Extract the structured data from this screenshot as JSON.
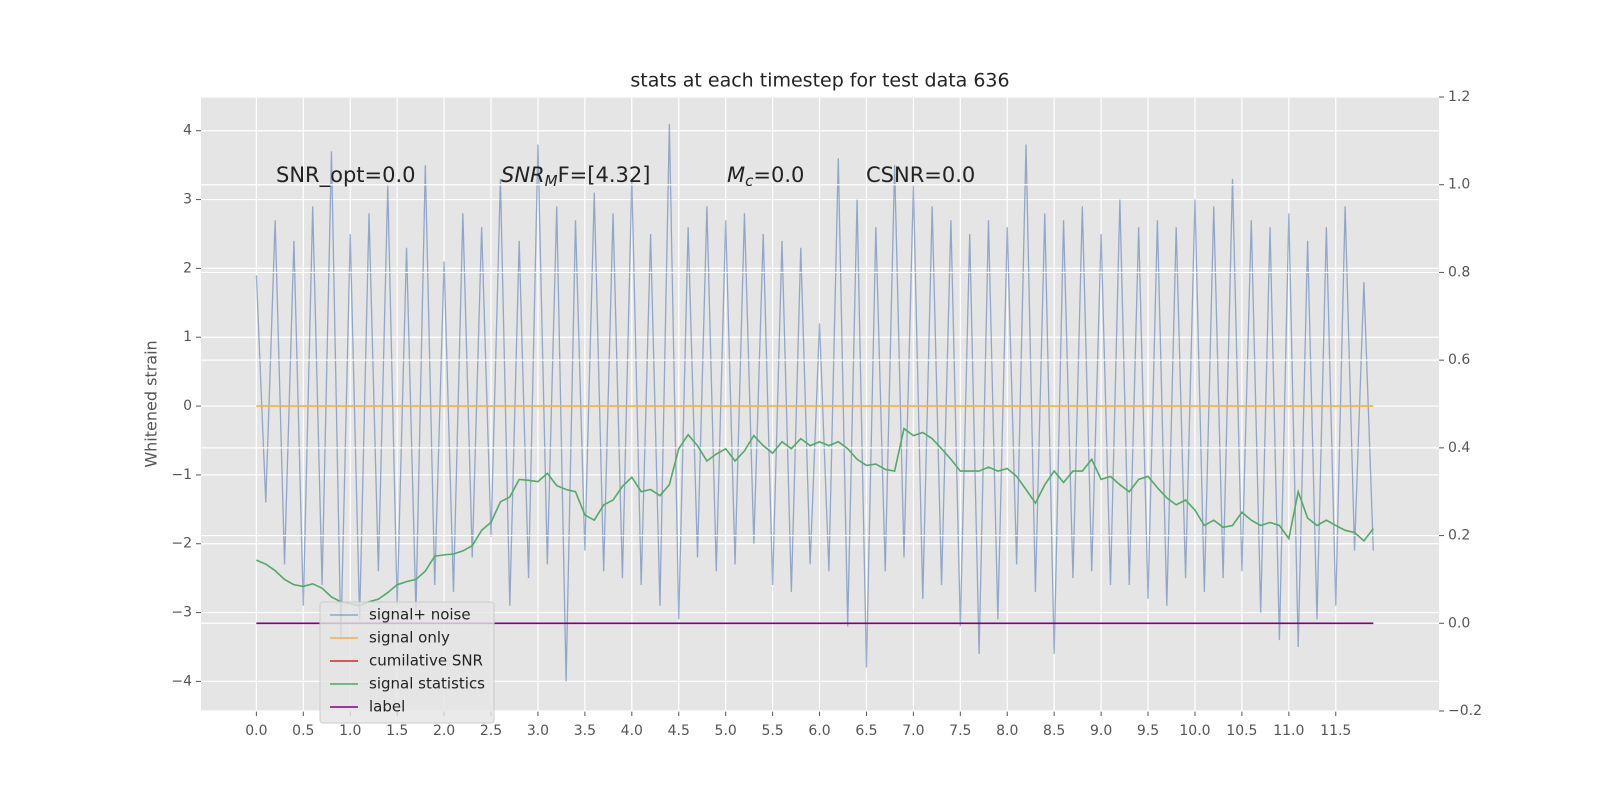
{
  "chart_data": {
    "type": "line",
    "title": "stats at each timestep for test data 636",
    "ylabel": "Whitened strain",
    "annotations": [
      "SNR_opt=0.0",
      {
        "base": "SNR",
        "sub": "M",
        "tail": "F=[4.32]"
      },
      {
        "base": "M",
        "sub": "c",
        "tail": "=0.0"
      },
      "CSNR=0.0"
    ],
    "xlim": [
      -0.59,
      12.6
    ],
    "xticks": [
      {
        "value": 0,
        "label": "0.0"
      },
      0.5,
      {
        "value": 1,
        "label": "1.0"
      },
      1.5,
      {
        "value": 2,
        "label": "2.0"
      },
      2.5,
      {
        "value": 3,
        "label": "3.0"
      },
      3.5,
      {
        "value": 4,
        "label": "4.0"
      },
      4.5,
      {
        "value": 5,
        "label": "5.0"
      },
      5.5,
      {
        "value": 6,
        "label": "6.0"
      },
      6.5,
      {
        "value": 7,
        "label": "7.0"
      },
      7.5,
      {
        "value": 8,
        "label": "8.0"
      },
      8.5,
      {
        "value": 9,
        "label": "9.0"
      },
      9.5,
      {
        "value": 10,
        "label": "10.0"
      },
      10.5,
      {
        "value": 11,
        "label": "11.0"
      },
      11.5
    ],
    "ylim": [
      -4.43,
      4.49
    ],
    "yticks": [
      {
        "value": -4,
        "label": "−4"
      },
      {
        "value": -3,
        "label": "−3"
      },
      {
        "value": -2,
        "label": "−2"
      },
      {
        "value": -1,
        "label": "−1"
      },
      0,
      1,
      2,
      3,
      4
    ],
    "y2lim": [
      -0.2,
      1.2
    ],
    "y2ticks": [
      {
        "value": -0.2,
        "label": "−0.2"
      },
      {
        "value": 0,
        "label": "0.0"
      },
      0.2,
      0.4,
      0.6,
      0.8,
      {
        "value": 1,
        "label": "1.0"
      },
      1.2
    ],
    "grid": true,
    "x": [
      0,
      0.1,
      0.2,
      0.3,
      0.4,
      0.5,
      0.6,
      0.7,
      0.8,
      0.9,
      1,
      1.1,
      1.2,
      1.3,
      1.4,
      1.5,
      1.6,
      1.7,
      1.8,
      1.9,
      2,
      2.1,
      2.2,
      2.3,
      2.4,
      2.5,
      2.6,
      2.7,
      2.8,
      2.9,
      3,
      3.1,
      3.2,
      3.3,
      3.4,
      3.5,
      3.6,
      3.7,
      3.8,
      3.9,
      4,
      4.1,
      4.2,
      4.3,
      4.4,
      4.5,
      4.6,
      4.7,
      4.8,
      4.9,
      5,
      5.1,
      5.2,
      5.3,
      5.4,
      5.5,
      5.6,
      5.7,
      5.8,
      5.9,
      6,
      6.1,
      6.2,
      6.3,
      6.4,
      6.5,
      6.6,
      6.7,
      6.8,
      6.9,
      7,
      7.1,
      7.2,
      7.3,
      7.4,
      7.5,
      7.6,
      7.7,
      7.8,
      7.9,
      8,
      8.1,
      8.2,
      8.3,
      8.4,
      8.5,
      8.6,
      8.7,
      8.8,
      8.9,
      9,
      9.1,
      9.2,
      9.3,
      9.4,
      9.5,
      9.6,
      9.7,
      9.8,
      9.9,
      10,
      10.1,
      10.2,
      10.3,
      10.4,
      10.5,
      10.6,
      10.7,
      10.8,
      10.9,
      11,
      11.1,
      11.2,
      11.3,
      11.4,
      11.5,
      11.6,
      11.7,
      11.8,
      11.9
    ],
    "series": [
      {
        "name": "signal+ noise",
        "color": "#4c72b0",
        "axis": "y",
        "values": [
          1.9,
          -1.4,
          2.7,
          -2.3,
          2.4,
          -2.9,
          2.9,
          -2.6,
          3.7,
          -3.4,
          2.5,
          -3.1,
          2.8,
          -2.4,
          3.2,
          -2.9,
          2.3,
          -3.0,
          3.5,
          -2.6,
          2.1,
          -2.7,
          2.8,
          -2.2,
          2.6,
          -1.9,
          3.3,
          -2.9,
          2.4,
          -2.5,
          3.8,
          -2.3,
          2.9,
          -4.0,
          2.7,
          -2.1,
          3.1,
          -2.4,
          2.8,
          -2.5,
          3.3,
          -2.6,
          2.5,
          -2.9,
          4.1,
          -3.1,
          2.6,
          -2.2,
          2.9,
          -2.4,
          2.7,
          -2.3,
          2.8,
          -2.0,
          2.5,
          -2.6,
          2.4,
          -2.7,
          2.3,
          -2.3,
          1.2,
          -2.4,
          3.6,
          -3.2,
          3.0,
          -3.8,
          2.6,
          -2.4,
          3.5,
          -2.2,
          3.2,
          -2.8,
          2.9,
          -2.6,
          2.7,
          -3.2,
          2.5,
          -3.6,
          2.7,
          -3.1,
          2.6,
          -2.3,
          3.8,
          -2.7,
          2.8,
          -3.6,
          2.7,
          -2.5,
          2.9,
          -2.4,
          2.5,
          -2.6,
          3.0,
          -2.6,
          2.6,
          -2.8,
          2.7,
          -2.9,
          2.6,
          -2.5,
          3.0,
          -2.7,
          2.9,
          -2.5,
          3.3,
          -2.4,
          2.7,
          -3.0,
          2.6,
          -3.4,
          2.8,
          -3.5,
          2.4,
          -3.1,
          2.6,
          -2.9,
          2.9,
          -2.1,
          1.8,
          -2.1
        ]
      },
      {
        "name": "signal only",
        "color": "#f5b041",
        "axis": "y",
        "x": [
          0,
          11.9
        ],
        "values": [
          0,
          0
        ]
      },
      {
        "name": "cumilative SNR",
        "color": "#d62728",
        "axis": "y2",
        "x": [],
        "values": []
      },
      {
        "name": "signal statistics",
        "color": "#55a868",
        "axis": "y2",
        "values": [
          0.144,
          0.135,
          0.12,
          0.1,
          0.088,
          0.084,
          0.09,
          0.08,
          0.06,
          0.049,
          0.045,
          0.04,
          0.049,
          0.055,
          0.07,
          0.088,
          0.095,
          0.1,
          0.119,
          0.153,
          0.156,
          0.158,
          0.165,
          0.177,
          0.212,
          0.23,
          0.277,
          0.288,
          0.328,
          0.326,
          0.323,
          0.342,
          0.314,
          0.305,
          0.3,
          0.247,
          0.235,
          0.27,
          0.281,
          0.312,
          0.333,
          0.3,
          0.305,
          0.291,
          0.316,
          0.398,
          0.43,
          0.405,
          0.37,
          0.386,
          0.398,
          0.37,
          0.393,
          0.428,
          0.405,
          0.388,
          0.414,
          0.398,
          0.421,
          0.405,
          0.414,
          0.405,
          0.414,
          0.398,
          0.374,
          0.36,
          0.363,
          0.351,
          0.347,
          0.444,
          0.428,
          0.435,
          0.421,
          0.398,
          0.374,
          0.347,
          0.347,
          0.347,
          0.356,
          0.347,
          0.353,
          0.335,
          0.305,
          0.274,
          0.316,
          0.347,
          0.321,
          0.347,
          0.347,
          0.374,
          0.328,
          0.335,
          0.316,
          0.3,
          0.328,
          0.335,
          0.309,
          0.286,
          0.27,
          0.281,
          0.258,
          0.223,
          0.235,
          0.219,
          0.223,
          0.253,
          0.235,
          0.223,
          0.23,
          0.223,
          0.193,
          0.3,
          0.24,
          0.223,
          0.235,
          0.223,
          0.212,
          0.207,
          0.188,
          0.216
        ]
      },
      {
        "name": "label",
        "color": "#800080",
        "axis": "y2",
        "x": [
          0,
          11.9
        ],
        "values": [
          0,
          0
        ]
      }
    ]
  }
}
